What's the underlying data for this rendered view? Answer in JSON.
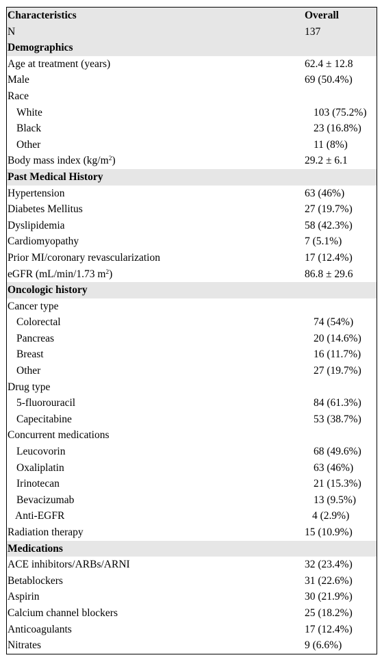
{
  "header": {
    "col1": "Characteristics",
    "col2": "Overall"
  },
  "n_row": {
    "label": "N",
    "value": "137"
  },
  "demographics": {
    "title": "Demographics",
    "age": {
      "label": "Age at treatment (years)",
      "value": "62.4 ± 12.8"
    },
    "male": {
      "label": "Male",
      "value": "69 (50.4%)"
    },
    "race_label": "Race",
    "race": [
      {
        "label": "White",
        "value": "103 (75.2%)"
      },
      {
        "label": "Black",
        "value": "23 (16.8%)"
      },
      {
        "label": "Other",
        "value": "11 (8%)"
      }
    ],
    "bmi": {
      "label_prefix": "Body mass index (kg/m",
      "label_sup": "2",
      "label_suffix": ")",
      "value": "29.2 ± 6.1"
    }
  },
  "pmh": {
    "title": "Past Medical History",
    "items": [
      {
        "label": "Hypertension",
        "value": "63 (46%)"
      },
      {
        "label": "Diabetes Mellitus",
        "value": "27 (19.7%)"
      },
      {
        "label": "Dyslipidemia",
        "value": "58 (42.3%)"
      },
      {
        "label": "Cardiomyopathy",
        "value": "7 (5.1%)"
      },
      {
        "label": "Prior MI/coronary revascularization",
        "value": "17 (12.4%)"
      }
    ],
    "egfr": {
      "label_prefix": "eGFR (mL/min/1.73 m",
      "label_sup": "2",
      "label_suffix": ")",
      "value": "86.8 ± 29.6"
    }
  },
  "oncology": {
    "title": "Oncologic history",
    "cancer_label": "Cancer type",
    "cancer": [
      {
        "label": "Colorectal",
        "value": "74 (54%)"
      },
      {
        "label": "Pancreas",
        "value": "20 (14.6%)"
      },
      {
        "label": "Breast",
        "value": "16 (11.7%)"
      },
      {
        "label": "Other",
        "value": "27 (19.7%)"
      }
    ],
    "drug_label": "Drug type",
    "drug": [
      {
        "label": "5-fluorouracil",
        "value": "84 (61.3%)"
      },
      {
        "label": "Capecitabine",
        "value": "53 (38.7%)"
      }
    ],
    "concurrent_label": "Concurrent medications",
    "concurrent": [
      {
        "label": "Leucovorin",
        "value": "68 (49.6%)"
      },
      {
        "label": "Oxaliplatin",
        "value": "63 (46%)"
      },
      {
        "label": "Irinotecan",
        "value": "21 (15.3%)"
      },
      {
        "label": "Bevacizumab",
        "value": "13 (9.5%)"
      },
      {
        "label": "Anti-EGFR",
        "value": "4 (2.9%)"
      }
    ],
    "radiation": {
      "label": "Radiation therapy",
      "value": "15 (10.9%)"
    }
  },
  "medications": {
    "title": "Medications",
    "items": [
      {
        "label": "ACE inhibitors/ARBs/ARNI",
        "value": "32 (23.4%)"
      },
      {
        "label": "Betablockers",
        "value": "31 (22.6%)"
      },
      {
        "label": "Aspirin",
        "value": "30 (21.9%)"
      },
      {
        "label": "Calcium channel blockers",
        "value": "25 (18.2%)"
      },
      {
        "label": "Anticoagulants",
        "value": "17 (12.4%)"
      },
      {
        "label": "Nitrates",
        "value": "9 (6.6%)"
      }
    ]
  },
  "colors": {
    "shade": "#e6e6e6",
    "border": "#000000"
  }
}
